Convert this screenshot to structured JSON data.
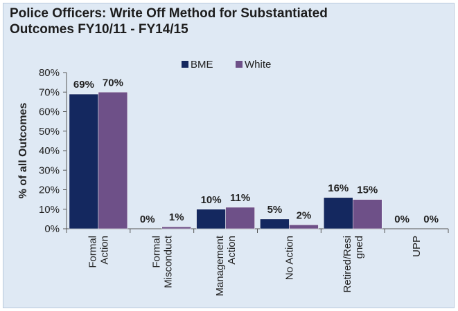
{
  "chart_data": {
    "type": "bar",
    "title": "Police Officers:  Write Off Method for Substantiated\nOutcomes FY10/11 - FY14/15",
    "ylabel": "% of all Outcomes",
    "xlabel": "",
    "categories": [
      [
        "Formal",
        "Action"
      ],
      [
        "Formal",
        "Misconduct"
      ],
      [
        "Management",
        "Action"
      ],
      [
        "No Action"
      ],
      [
        "Retired/Resi",
        "gned"
      ],
      [
        "UPP"
      ]
    ],
    "series": [
      {
        "name": "BME",
        "color": "#14285f",
        "values": [
          69,
          0,
          10,
          5,
          16,
          0
        ],
        "labels": [
          "69%",
          "0%",
          "10%",
          "5%",
          "16%",
          "0%"
        ]
      },
      {
        "name": "White",
        "color": "#6e5088",
        "values": [
          70,
          1,
          11,
          2,
          15,
          0
        ],
        "labels": [
          "70%",
          "1%",
          "11%",
          "2%",
          "15%",
          "0%"
        ]
      }
    ],
    "ylim": [
      0,
      80
    ],
    "yticks": [
      "0%",
      "10%",
      "20%",
      "30%",
      "40%",
      "50%",
      "60%",
      "70%",
      "80%"
    ],
    "grid": false,
    "legend": "top-center"
  }
}
